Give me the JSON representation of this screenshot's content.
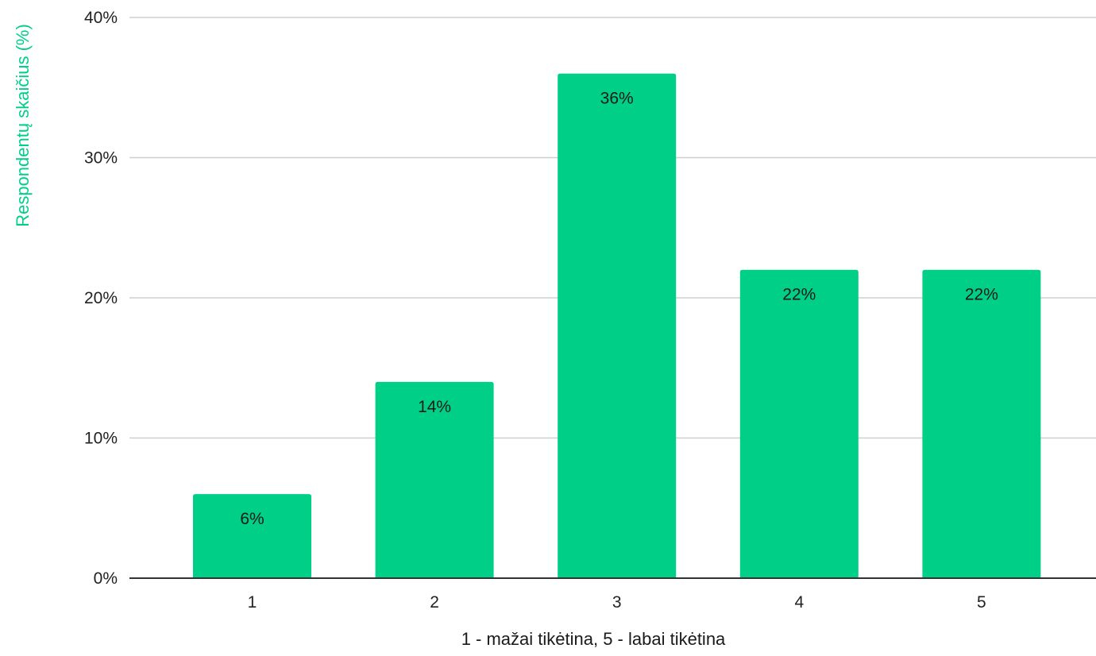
{
  "chart_data": {
    "type": "bar",
    "categories": [
      "1",
      "2",
      "3",
      "4",
      "5"
    ],
    "values": [
      6,
      14,
      36,
      22,
      22
    ],
    "data_labels": [
      "6%",
      "14%",
      "36%",
      "22%",
      "22%"
    ],
    "title": "",
    "xlabel": "1 - mažai tikėtina, 5 - labai tikėtina",
    "ylabel": "Respondentų skaičius (%)",
    "ylim": [
      0,
      40
    ],
    "yticks": [
      0,
      10,
      20,
      30,
      40
    ],
    "ytick_labels": [
      "0%",
      "10%",
      "20%",
      "30%",
      "40%"
    ],
    "grid": true,
    "legend": "none",
    "colors": {
      "bar": "#00cf87",
      "ylabel": "#00cf87",
      "grid": "#cfcfcf",
      "axis": "#333333"
    }
  }
}
